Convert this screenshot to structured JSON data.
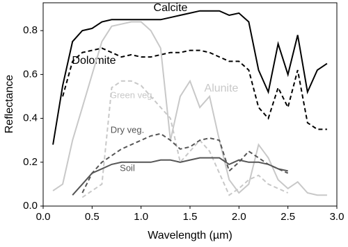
{
  "chart_data": {
    "type": "line",
    "x_label": "Wavelength (µm)",
    "y_label": "Reflectance",
    "x": [
      0.1,
      0.2,
      0.3,
      0.4,
      0.5,
      0.6,
      0.7,
      0.8,
      0.9,
      1.0,
      1.1,
      1.2,
      1.3,
      1.4,
      1.5,
      1.6,
      1.7,
      1.8,
      1.9,
      2.0,
      2.1,
      2.2,
      2.3,
      2.4,
      2.5,
      2.6,
      2.7,
      2.8,
      2.9
    ],
    "series": [
      {
        "name": "Calcite",
        "color": "#000000",
        "dashed": false,
        "values": [
          0.28,
          0.55,
          0.75,
          0.8,
          0.81,
          0.84,
          0.85,
          0.85,
          0.85,
          0.85,
          0.85,
          0.85,
          0.86,
          0.87,
          0.88,
          0.89,
          0.89,
          0.89,
          0.87,
          0.88,
          0.84,
          0.62,
          0.52,
          0.74,
          0.6,
          0.78,
          0.52,
          0.62,
          0.65
        ]
      },
      {
        "name": "Dolomite",
        "color": "#000000",
        "dashed": true,
        "values": [
          null,
          0.5,
          0.66,
          0.7,
          0.71,
          0.72,
          0.7,
          0.68,
          0.69,
          0.68,
          0.68,
          0.69,
          0.7,
          0.7,
          0.71,
          0.71,
          0.7,
          0.68,
          0.66,
          0.66,
          0.62,
          0.45,
          0.4,
          0.54,
          0.45,
          0.62,
          0.38,
          0.35,
          0.35
        ]
      },
      {
        "name": "Green veg.",
        "color": "#c8c8c8",
        "dashed": true,
        "values": [
          null,
          null,
          null,
          0.04,
          0.07,
          0.1,
          0.54,
          0.57,
          0.57,
          0.55,
          0.5,
          0.45,
          0.4,
          0.2,
          0.25,
          0.3,
          0.25,
          0.15,
          0.05,
          0.08,
          0.12,
          0.14,
          0.1,
          0.08,
          0.06,
          null,
          null,
          null,
          null
        ]
      },
      {
        "name": "Alunite",
        "color": "#c8c8c8",
        "dashed": false,
        "values": [
          0.07,
          0.1,
          0.3,
          0.45,
          0.6,
          0.75,
          0.82,
          0.83,
          0.84,
          0.84,
          0.8,
          0.72,
          0.3,
          0.5,
          0.57,
          0.45,
          0.5,
          0.3,
          0.12,
          0.06,
          0.1,
          0.28,
          0.22,
          0.12,
          0.08,
          0.11,
          0.06,
          0.05,
          0.05
        ]
      },
      {
        "name": "Dry veg.",
        "color": "#555555",
        "dashed": true,
        "values": [
          null,
          null,
          null,
          0.06,
          0.15,
          0.2,
          0.23,
          0.26,
          0.28,
          0.3,
          0.32,
          0.33,
          0.3,
          0.26,
          0.27,
          0.3,
          0.31,
          0.3,
          0.16,
          0.2,
          0.25,
          0.22,
          0.19,
          0.17,
          0.15,
          null,
          null,
          null,
          null
        ]
      },
      {
        "name": "Soil",
        "color": "#555555",
        "dashed": false,
        "values": [
          null,
          null,
          0.05,
          0.1,
          0.15,
          0.17,
          0.19,
          0.2,
          0.2,
          0.2,
          0.2,
          0.21,
          0.21,
          0.2,
          0.21,
          0.22,
          0.22,
          0.22,
          0.19,
          0.21,
          0.2,
          0.2,
          0.19,
          0.17,
          0.16,
          null,
          null,
          null,
          null
        ]
      }
    ],
    "xlim": [
      0,
      3.0
    ],
    "ylim": [
      0,
      0.927
    ],
    "xticks": [
      {
        "value": 0,
        "label": "0.0"
      },
      0.5,
      {
        "value": 1,
        "label": "1.0"
      },
      1.5,
      {
        "value": 2,
        "label": "2.0"
      },
      2.5,
      {
        "value": 3,
        "label": "3.0"
      }
    ],
    "yticks": [
      {
        "value": 0,
        "label": "0.0"
      },
      0.2,
      0.4,
      0.6,
      0.8
    ],
    "grid": false
  }
}
